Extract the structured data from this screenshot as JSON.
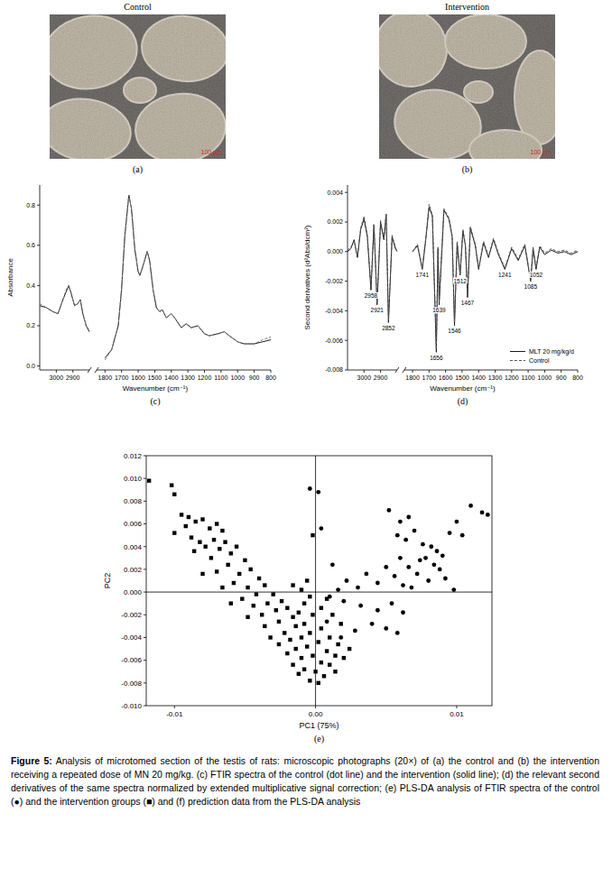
{
  "photos": [
    {
      "title": "Control",
      "label": "(a)",
      "scale_label": "100 µm"
    },
    {
      "title": "Intervention",
      "label": "(b)",
      "scale_label": "100 µm"
    }
  ],
  "chart_data": [
    {
      "type": "line",
      "label": "(c)",
      "x_label": "Wavenumber (cm⁻¹)",
      "y_label": "Absorbance",
      "xlim": [
        3100,
        800
      ],
      "x_break": [
        2800,
        1850
      ],
      "xticks": [
        3000,
        2900,
        1800,
        1700,
        1600,
        1500,
        1400,
        1300,
        1200,
        1100,
        1000,
        900,
        800
      ],
      "ylim": [
        -0.02,
        0.9
      ],
      "yticks": [
        {
          "value": 0,
          "label": "0.0"
        },
        0.2,
        0.4,
        0.6,
        0.8
      ],
      "x": [
        3100,
        3060,
        3020,
        2990,
        2960,
        2940,
        2925,
        2910,
        2890,
        2870,
        2855,
        2840,
        2820,
        2800,
        2300,
        1800,
        1760,
        1720,
        1700,
        1680,
        1656,
        1640,
        1620,
        1600,
        1590,
        1570,
        1545,
        1530,
        1510,
        1490,
        1470,
        1455,
        1430,
        1400,
        1380,
        1340,
        1310,
        1280,
        1240,
        1200,
        1170,
        1120,
        1080,
        1050,
        1000,
        960,
        900,
        850,
        800
      ],
      "series": [
        {
          "color": "#1a1a1a",
          "line_style": "solid",
          "values": [
            0.3,
            0.29,
            0.27,
            0.26,
            0.33,
            0.37,
            0.4,
            0.36,
            0.3,
            0.31,
            0.33,
            0.26,
            0.2,
            0.17,
            null,
            0.04,
            0.08,
            0.2,
            0.38,
            0.65,
            0.85,
            0.78,
            0.58,
            0.47,
            0.45,
            0.5,
            0.57,
            0.52,
            0.38,
            0.29,
            0.27,
            0.28,
            0.24,
            0.26,
            0.24,
            0.19,
            0.21,
            0.19,
            0.2,
            0.16,
            0.15,
            0.16,
            0.17,
            0.15,
            0.12,
            0.11,
            0.11,
            0.12,
            0.13
          ]
        },
        {
          "color": "#7a7a7a",
          "line_style": "dashed",
          "values": [
            0.31,
            0.29,
            0.27,
            0.26,
            0.33,
            0.38,
            0.4,
            0.36,
            0.3,
            0.31,
            0.33,
            0.26,
            0.2,
            0.18,
            null,
            0.03,
            0.08,
            0.2,
            0.38,
            0.65,
            0.85,
            0.78,
            0.58,
            0.47,
            0.45,
            0.5,
            0.57,
            0.52,
            0.38,
            0.29,
            0.27,
            0.28,
            0.24,
            0.26,
            0.24,
            0.19,
            0.21,
            0.19,
            0.2,
            0.16,
            0.15,
            0.16,
            0.17,
            0.15,
            0.12,
            0.11,
            0.11,
            0.13,
            0.145
          ]
        }
      ]
    },
    {
      "type": "line",
      "label": "(d)",
      "x_label": "Wavenumber (cm⁻¹)",
      "y_label": "Second derivatives (d²Abs/dcm²)",
      "xlim": [
        3100,
        800
      ],
      "x_break": [
        2800,
        1850
      ],
      "xticks": [
        3000,
        2900,
        1800,
        1700,
        1600,
        1500,
        1400,
        1300,
        1200,
        1100,
        1000,
        900,
        800
      ],
      "ylim": [
        -0.008,
        0.0045
      ],
      "yticks": [
        -0.008,
        -0.006,
        -0.004,
        -0.002,
        {
          "value": 0,
          "label": "0.000"
        },
        0.002,
        0.004
      ],
      "legend": "lower right",
      "annotations": [
        2958,
        2921,
        2852,
        1741,
        1656,
        1639,
        1546,
        1512,
        1467,
        1241,
        1085,
        1052
      ],
      "x": [
        3100,
        3080,
        3060,
        3040,
        3020,
        3000,
        2980,
        2958,
        2940,
        2921,
        2900,
        2880,
        2866,
        2852,
        2830,
        2810,
        2800,
        2300,
        1800,
        1770,
        1741,
        1720,
        1700,
        1680,
        1656,
        1646,
        1639,
        1610,
        1580,
        1560,
        1546,
        1530,
        1512,
        1495,
        1480,
        1467,
        1450,
        1420,
        1400,
        1370,
        1340,
        1310,
        1280,
        1241,
        1200,
        1160,
        1120,
        1085,
        1070,
        1052,
        1030,
        1000,
        960,
        920,
        880,
        840,
        800
      ],
      "series": [
        {
          "name": "MLT 20 mg/kg/d",
          "color": "#1a1a1a",
          "line_style": "solid",
          "values": [
            0.0,
            0.0002,
            0.0008,
            -0.0004,
            0.0015,
            0.0022,
            0.001,
            -0.0026,
            0.0018,
            -0.0036,
            0.002,
            0.0008,
            0.0025,
            -0.0048,
            0.001,
            0.0002,
            0.0,
            null,
            0.0,
            0.0004,
            -0.0012,
            0.0008,
            0.003,
            0.0024,
            -0.0068,
            0.0002,
            -0.0036,
            0.0028,
            0.0022,
            0.001,
            -0.005,
            0.0006,
            -0.0016,
            0.0014,
            0.0004,
            -0.0031,
            0.0016,
            0.0004,
            -0.0012,
            0.0006,
            -0.0004,
            0.0008,
            -0.0002,
            -0.0012,
            0.0002,
            -0.0006,
            0.0004,
            -0.002,
            0.0002,
            -0.0012,
            0.0003,
            -0.0002,
            0.0001,
            -0.0001,
            0.0,
            -0.0002,
            0.0
          ]
        },
        {
          "name": "Control",
          "color": "#555555",
          "line_style": "dashed",
          "values": [
            0.0001,
            0.0003,
            0.0007,
            -0.0003,
            0.0016,
            0.0024,
            0.0011,
            -0.0024,
            0.0019,
            -0.0034,
            0.0021,
            0.0009,
            0.0026,
            -0.0046,
            0.0011,
            0.0003,
            0.0,
            null,
            0.0,
            0.0005,
            -0.0011,
            0.0009,
            0.0032,
            0.0025,
            -0.0066,
            0.0003,
            -0.0034,
            0.0029,
            0.0023,
            0.0011,
            -0.0048,
            0.0007,
            -0.0015,
            0.0015,
            0.0005,
            -0.0029,
            0.0017,
            0.0005,
            -0.0011,
            0.0007,
            -0.0003,
            0.0009,
            -0.0001,
            -0.0011,
            0.0003,
            -0.0005,
            0.0005,
            -0.0019,
            0.0003,
            -0.0011,
            0.0004,
            -0.0001,
            0.0002,
            0.0,
            0.0001,
            -0.0001,
            0.0001
          ]
        }
      ]
    },
    {
      "type": "scatter",
      "label": "(e)",
      "x_label": "PC1 (75%)",
      "y_label": "PC2",
      "xlim": [
        -0.012,
        0.0125
      ],
      "xticks": [
        -0.01,
        {
          "value": 0,
          "label": "0.00"
        },
        0.01
      ],
      "ylim": [
        -0.01,
        0.012
      ],
      "yticks": [
        0.012,
        {
          "value": 0.01,
          "label": "0.010"
        },
        0.008,
        0.006,
        0.004,
        0.002,
        {
          "value": 0,
          "label": "0.000"
        },
        -0.002,
        -0.004,
        -0.006,
        -0.008,
        {
          "value": -0.01,
          "label": "-0.010"
        }
      ],
      "series": [
        {
          "marker": "circle",
          "color": "#000000",
          "x": [
            0.0118,
            0.0122,
            0.011,
            0.01,
            0.0095,
            0.0104,
            0.0052,
            0.006,
            0.0066,
            0.0058,
            0.0064,
            0.007,
            0.0076,
            0.0082,
            0.0086,
            0.009,
            0.0078,
            0.0084,
            0.0088,
            0.0092,
            0.0098,
            0.0072,
            0.0066,
            0.006,
            0.0056,
            0.0062,
            0.0068,
            0.005,
            0.0044,
            0.0036,
            0.003,
            0.0022,
            0.0016,
            0.001,
            0.002,
            0.0032,
            0.0044,
            0.0054,
            0.0062,
            0.005,
            0.0058,
            0.004,
            0.0028,
            0.0018,
            0.0008,
            0.0012,
            0.0004,
            -0.0004,
            0.0002,
            0.0074,
            0.008
          ],
          "values": [
            0.007,
            0.0068,
            0.0076,
            0.0062,
            0.0052,
            0.005,
            0.0072,
            0.0062,
            0.0066,
            0.005,
            0.0046,
            0.0054,
            0.0042,
            0.004,
            0.0036,
            0.0032,
            0.003,
            0.0024,
            0.002,
            0.0012,
            0.0002,
            0.0016,
            0.0022,
            0.003,
            0.0014,
            0.0006,
            0.0004,
            0.0022,
            0.0008,
            0.0016,
            0.0004,
            0.001,
            0.0002,
            -0.0004,
            -0.0008,
            -0.0012,
            -0.0016,
            -0.001,
            -0.0018,
            -0.0032,
            -0.0036,
            -0.0028,
            -0.0034,
            -0.004,
            -0.0026,
            0.0024,
            0.0056,
            0.0091,
            0.0088,
            0.0028,
            0.001
          ]
        },
        {
          "marker": "square",
          "color": "#000000",
          "x": [
            -0.0118,
            -0.0102,
            -0.01,
            -0.0095,
            -0.009,
            -0.0085,
            -0.0092,
            -0.008,
            -0.0075,
            -0.007,
            -0.0066,
            -0.0088,
            -0.0082,
            -0.0078,
            -0.0072,
            -0.0068,
            -0.0064,
            -0.006,
            -0.0074,
            -0.0086,
            -0.0056,
            -0.005,
            -0.0062,
            -0.007,
            -0.008,
            -0.0054,
            -0.0046,
            -0.004,
            -0.0058,
            -0.0066,
            -0.0048,
            -0.0036,
            -0.0042,
            -0.0052,
            -0.006,
            -0.003,
            -0.0034,
            -0.0044,
            -0.0024,
            -0.0028,
            -0.0038,
            -0.0048,
            -0.002,
            -0.0016,
            -0.0026,
            -0.0036,
            -0.0012,
            -0.0008,
            -0.0004,
            -0.0014,
            -0.0022,
            -0.0032,
            -0.0008,
            -0.0002,
            0.0004,
            -0.0018,
            -0.0026,
            -0.001,
            -0.0004,
            0.0004,
            0.001,
            0.0016,
            -0.0014,
            -0.0006,
            0.0002,
            0.0008,
            0.0014,
            -0.002,
            -0.001,
            -0.0002,
            0.0004,
            0.001,
            0.002,
            0.0024,
            -0.0016,
            -0.0008,
            0.0,
            0.0006,
            -0.0004,
            0.0002,
            -0.0012,
            0.0014,
            -0.0006,
            -0.001,
            -0.0002,
            -0.0016,
            0.0008,
            0.0012,
            0.0018,
            -0.01
          ],
          "values": [
            0.0098,
            0.0094,
            0.0086,
            0.0068,
            0.0066,
            0.0062,
            0.0058,
            0.0064,
            0.0056,
            0.006,
            0.0054,
            0.0048,
            0.0044,
            0.004,
            0.0046,
            0.0038,
            0.0044,
            0.0034,
            0.003,
            0.0036,
            0.004,
            0.0028,
            0.0024,
            0.0018,
            0.0016,
            0.0016,
            0.002,
            0.0012,
            0.0008,
            0.0004,
            0.0004,
            0.0006,
            -0.0002,
            -0.0006,
            -0.001,
            -0.0002,
            -0.001,
            -0.0012,
            -0.0008,
            -0.0016,
            -0.002,
            -0.0022,
            -0.0014,
            -0.0022,
            -0.0026,
            -0.003,
            -0.0018,
            -0.001,
            -0.0004,
            -0.003,
            -0.0036,
            -0.004,
            -0.0028,
            -0.002,
            -0.0014,
            -0.0042,
            -0.0046,
            -0.004,
            -0.0036,
            -0.0032,
            -0.004,
            -0.0046,
            -0.005,
            -0.0048,
            -0.0044,
            -0.0052,
            -0.0056,
            -0.0054,
            -0.0058,
            -0.0056,
            -0.0062,
            -0.0064,
            -0.0058,
            -0.005,
            -0.0064,
            -0.0068,
            -0.007,
            -0.0074,
            -0.0078,
            -0.008,
            -0.0072,
            -0.007,
            0.001,
            0.0002,
            0.005,
            0.0006,
            -0.0006,
            -0.002,
            -0.0028,
            0.0052
          ]
        }
      ]
    }
  ],
  "caption": {
    "label": "Figure 5:",
    "text": "Analysis of microtomed section of the testis of rats: microscopic photographs (20×) of (a) the control and (b) the intervention receiving a repeated dose of MN 20 mg/kg. (c) FTIR spectra of the control (dot line) and the intervention (solid line); (d) the relevant second derivatives of the same spectra normalized by extended multiplicative signal correction; (e) PLS-DA analysis of FTIR spectra of the control (●) and the intervention groups (■) and (f) prediction data from the PLS-DA analysis"
  }
}
